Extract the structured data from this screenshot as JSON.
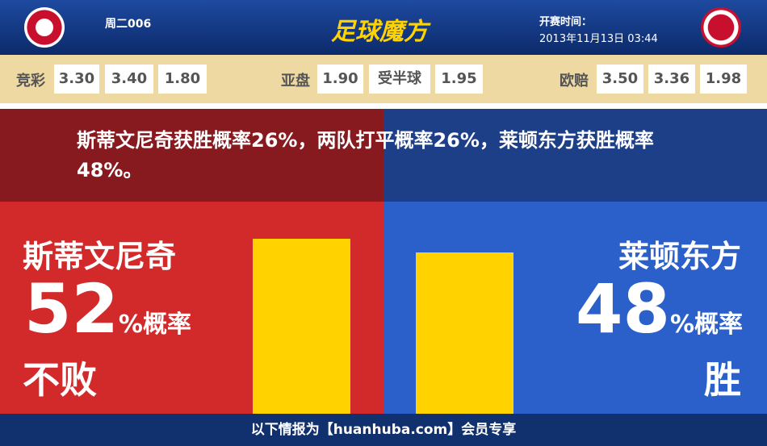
{
  "header": {
    "match_code": "周二006",
    "logo": "足球魔方",
    "kickoff_label": "开赛时间：",
    "kickoff_time": "2013年11月13日 03:44"
  },
  "odds": [
    {
      "label": "竞彩",
      "values": [
        "3.30",
        "3.40",
        "1.80"
      ]
    },
    {
      "label": "亚盘",
      "values": [
        "1.90",
        "受半球",
        "1.95"
      ]
    },
    {
      "label": "欧赔",
      "values": [
        "3.50",
        "3.36",
        "1.98"
      ]
    }
  ],
  "summary": "斯蒂文尼奇获胜概率26%，两队打平概率26%，莱顿东方获胜概率48%。",
  "home": {
    "name": "斯蒂文尼奇",
    "percent": 52,
    "percent_suffix": "%概率",
    "verdict": "不败"
  },
  "away": {
    "name": "莱顿东方",
    "percent": 48,
    "percent_suffix": "%概率",
    "verdict": "胜"
  },
  "footer": "以下情报为【huanhuba.com】会员专享"
}
